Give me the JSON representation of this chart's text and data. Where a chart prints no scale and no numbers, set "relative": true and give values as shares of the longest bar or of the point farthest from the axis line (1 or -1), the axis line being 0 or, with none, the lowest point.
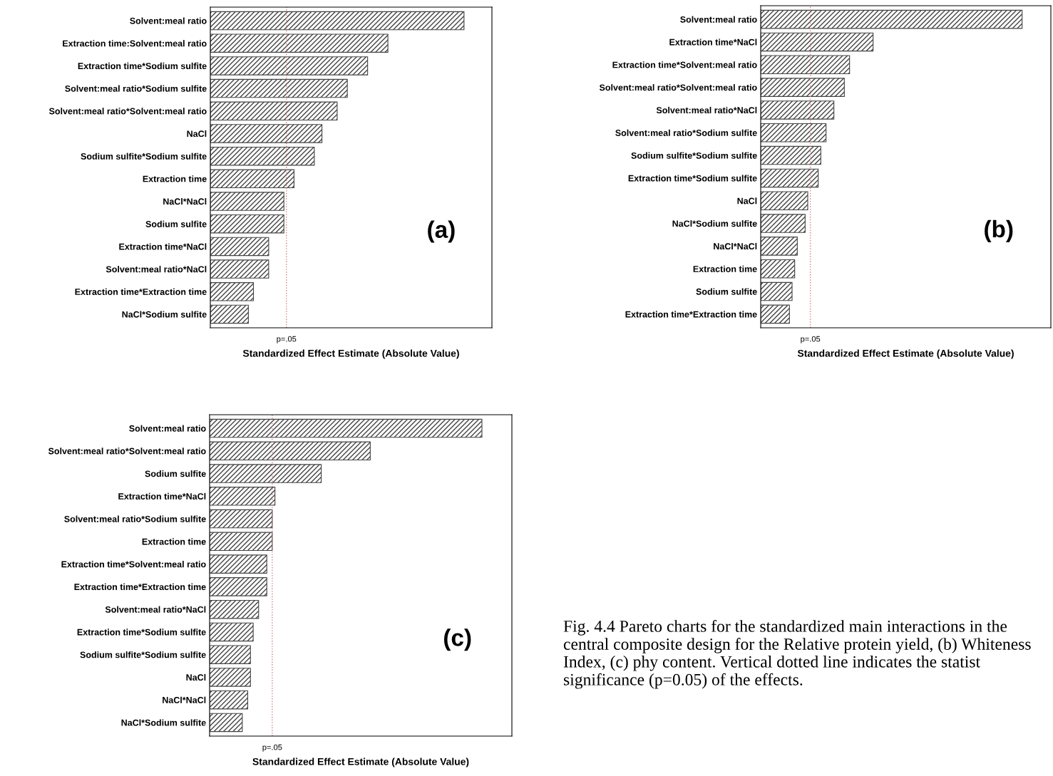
{
  "chart_data": [
    {
      "type": "bar",
      "orientation": "horizontal",
      "relative": true,
      "xlabel": "Standardized Effect Estimate (Absolute Value)",
      "categories": [
        "Solvent:meal ratio",
        "Extraction time:Solvent:meal ratio",
        "Extraction time*Sodium sulfite",
        "Solvent:meal ratio*Sodium sulfite",
        "Solvent:meal ratio*Solvent:meal ratio",
        "NaCl",
        "Sodium sulfite*Sodium sulfite",
        "Extraction time",
        "NaCl*NaCl",
        "Sodium sulfite",
        "Extraction time*NaCl",
        "Solvent:meal ratio*NaCl",
        "Extraction time*Extraction time",
        "NaCl*Sodium sulfite"
      ],
      "values": [
        1,
        0.7,
        0.62,
        0.54,
        0.5,
        0.44,
        0.41,
        0.33,
        0.29,
        0.29,
        0.23,
        0.23,
        0.17,
        0.15
      ],
      "color": "#444444",
      "ref_lines": [
        {
          "axis": "x",
          "value": 0.3,
          "label": "p=.05",
          "color": "#d08080",
          "line_style": "dotted"
        }
      ],
      "annotations": [
        "(a)"
      ]
    },
    {
      "type": "bar",
      "orientation": "horizontal",
      "relative": true,
      "xlabel": "Standardized Effect Estimate (Absolute Value)",
      "categories": [
        "Solvent:meal ratio",
        "Extraction time*NaCl",
        "Extraction time*Solvent:meal ratio",
        "Solvent:meal ratio*Solvent:meal ratio",
        "Solvent:meal ratio*NaCl",
        "Solvent:meal ratio*Sodium sulfite",
        "Sodium sulfite*Sodium sulfite",
        "Extraction time*Sodium sulfite",
        "NaCl",
        "NaCl*Sodium sulfite",
        "NaCl*NaCl",
        "Extraction time",
        "Sodium sulfite",
        "Extraction time*Extraction time"
      ],
      "values": [
        1,
        0.43,
        0.34,
        0.32,
        0.28,
        0.25,
        0.23,
        0.22,
        0.18,
        0.17,
        0.14,
        0.13,
        0.12,
        0.11
      ],
      "color": "#444444",
      "ref_lines": [
        {
          "axis": "x",
          "value": 0.19,
          "label": "p=.05",
          "color": "#d08080",
          "line_style": "dotted"
        }
      ],
      "annotations": [
        "(b)"
      ]
    },
    {
      "type": "bar",
      "orientation": "horizontal",
      "relative": true,
      "xlabel": "Standardized Effect Estimate (Absolute Value)",
      "categories": [
        "Solvent:meal ratio",
        "Solvent:meal ratio*Solvent:meal ratio",
        "Sodium sulfite",
        "Extraction time*NaCl",
        "Solvent:meal ratio*Sodium sulfite",
        "Extraction time",
        "Extraction time*Solvent:meal ratio",
        "Extraction time*Extraction time",
        "Solvent:meal ratio*NaCl",
        "Extraction time*Sodium sulfite",
        "Sodium sulfite*Sodium sulfite",
        "NaCl",
        "NaCl*NaCl",
        "NaCl*Sodium sulfite"
      ],
      "values": [
        1,
        0.59,
        0.41,
        0.24,
        0.23,
        0.23,
        0.21,
        0.21,
        0.18,
        0.16,
        0.15,
        0.15,
        0.14,
        0.12
      ],
      "color": "#444444",
      "ref_lines": [
        {
          "axis": "x",
          "value": 0.23,
          "label": "p=.05",
          "color": "#d08080",
          "line_style": "dotted"
        }
      ],
      "annotations": [
        "(c)"
      ]
    },
    {
      "type": "other",
      "annotations": [
        "Fig. 4.4 Pareto charts for the standardized main interactions in the central composite design for the Relative protein yield, (b) Whiteness Index, (c) phy content. Vertical dotted line indicates the statist significance (p=0.05) of the effects."
      ]
    }
  ]
}
